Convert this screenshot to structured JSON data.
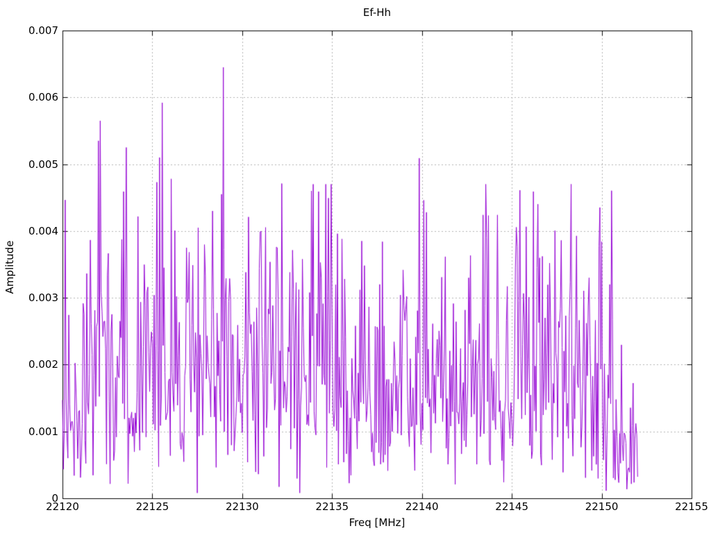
{
  "figure": {
    "background": "#ffffff"
  },
  "chart_data": {
    "type": "line",
    "title": "Ef-Hh",
    "xlabel": "Freq [MHz]",
    "ylabel": "Amplitude",
    "xlim": [
      22120,
      22155
    ],
    "ylim": [
      0,
      0.007
    ],
    "xtick_values": [
      22120,
      22125,
      22130,
      22135,
      22140,
      22145,
      22150,
      22155
    ],
    "xtick_labels": [
      "22120",
      "22125",
      "22130",
      "22135",
      "22140",
      "22145",
      "22150",
      "22155"
    ],
    "ytick_values": [
      0,
      0.001,
      0.002,
      0.003,
      0.004,
      0.005,
      0.006,
      0.007
    ],
    "ytick_labels": [
      "0",
      "0.001",
      "0.002",
      "0.003",
      "0.004",
      "0.005",
      "0.006",
      "0.007"
    ],
    "grid": {
      "show": true,
      "style": "dashed",
      "color": "#b0b0b0"
    },
    "legend": null,
    "colors": {
      "line": "#9400D3",
      "axis": "#000000",
      "text": "#000000",
      "background": "#ffffff"
    },
    "series": [
      {
        "name": "Ef-Hh",
        "x_start": 22120,
        "x_step": 0.05,
        "n_points": 641,
        "x_end": 22152,
        "noise_model": "rayleigh",
        "noise_seed": 20482,
        "noise_cap": 0.0047,
        "noise_floor": 8e-05,
        "envelope": [
          [
            22120,
            0.0019
          ],
          [
            22121.5,
            0.0022
          ],
          [
            22126,
            0.0022
          ],
          [
            22129,
            0.0023
          ],
          [
            22131,
            0.002
          ],
          [
            22134,
            0.0023
          ],
          [
            22136.5,
            0.0019
          ],
          [
            22139,
            0.0021
          ],
          [
            22141.5,
            0.0017
          ],
          [
            22143.5,
            0.0022
          ],
          [
            22146,
            0.0022
          ],
          [
            22148,
            0.002
          ],
          [
            22149.8,
            0.0022
          ],
          [
            22150.8,
            0.0014
          ],
          [
            22151.6,
            0.0009
          ],
          [
            22152,
            0.0007
          ]
        ],
        "peaks": [
          [
            22122.0,
            0.00535
          ],
          [
            22122.1,
            0.00565
          ],
          [
            22123.55,
            0.00525
          ],
          [
            22125.25,
            0.00473
          ],
          [
            22125.4,
            0.0051
          ],
          [
            22125.55,
            0.00592
          ],
          [
            22126.05,
            0.00478
          ],
          [
            22126.9,
            0.00375
          ],
          [
            22128.35,
            0.0043
          ],
          [
            22128.85,
            0.00455
          ],
          [
            22128.95,
            0.00645
          ],
          [
            22130.35,
            0.00421
          ],
          [
            22131.9,
            0.00376
          ],
          [
            22132.2,
            0.00471
          ],
          [
            22133.85,
            0.0046
          ],
          [
            22134.25,
            0.00459
          ],
          [
            22135.3,
            0.00396
          ],
          [
            22135.55,
            0.00388
          ],
          [
            22136.65,
            0.00385
          ],
          [
            22137.8,
            0.00384
          ],
          [
            22139.85,
            0.00509
          ],
          [
            22140.1,
            0.00446
          ],
          [
            22140.25,
            0.00428
          ],
          [
            22142.6,
            0.0033
          ],
          [
            22143.4,
            0.00424
          ],
          [
            22143.6,
            0.0039
          ],
          [
            22144.2,
            0.00424
          ],
          [
            22145.45,
            0.00461
          ],
          [
            22146.2,
            0.00459
          ],
          [
            22147.1,
            0.00352
          ],
          [
            22147.75,
            0.00386
          ],
          [
            22149.3,
            0.0033
          ],
          [
            22150.0,
            0.00384
          ],
          [
            22150.45,
            0.0032
          ]
        ]
      }
    ]
  }
}
